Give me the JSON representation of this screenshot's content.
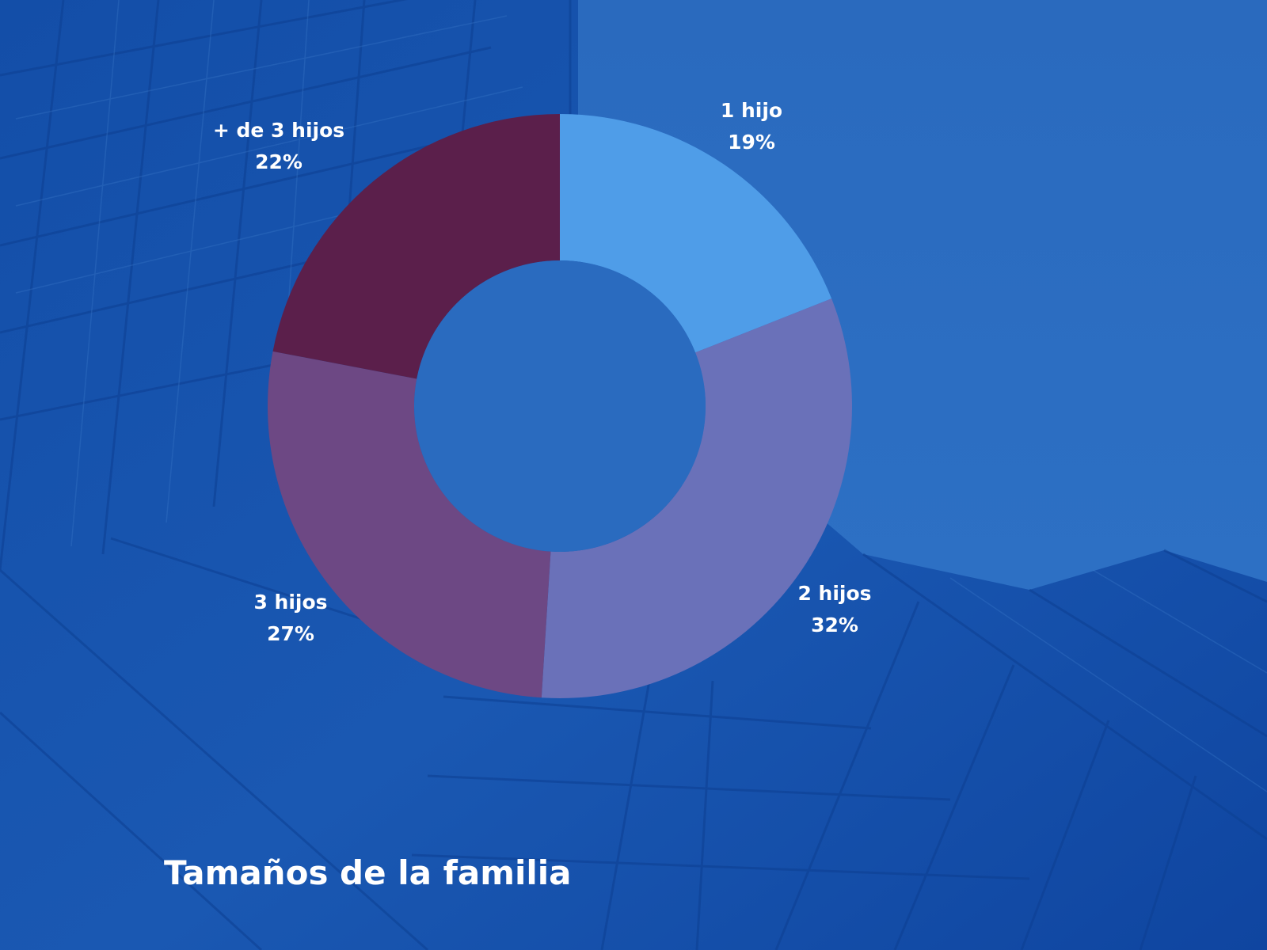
{
  "chart_data": {
    "type": "pie",
    "variant": "donut",
    "title": "Tamaños de la familia",
    "slices": [
      {
        "label": "1 hijo",
        "value": 19,
        "value_label": "19%",
        "color": "#4f9de8"
      },
      {
        "label": "2 hijos",
        "value": 32,
        "value_label": "32%",
        "color": "#6a71b9"
      },
      {
        "label": "3 hijos",
        "value": 27,
        "value_label": "27%",
        "color": "#6d4884"
      },
      {
        "label": "+ de 3 hijos",
        "value": 22,
        "value_label": "22%",
        "color": "#5b1f4b"
      }
    ],
    "start_angle_deg": 0,
    "direction": "clockwise",
    "legend": "none"
  },
  "colors": {
    "background": "#1753ad",
    "background_light": "#2a6bc0",
    "donut_hole": "#2a6bbf",
    "text": "#ffffff"
  }
}
